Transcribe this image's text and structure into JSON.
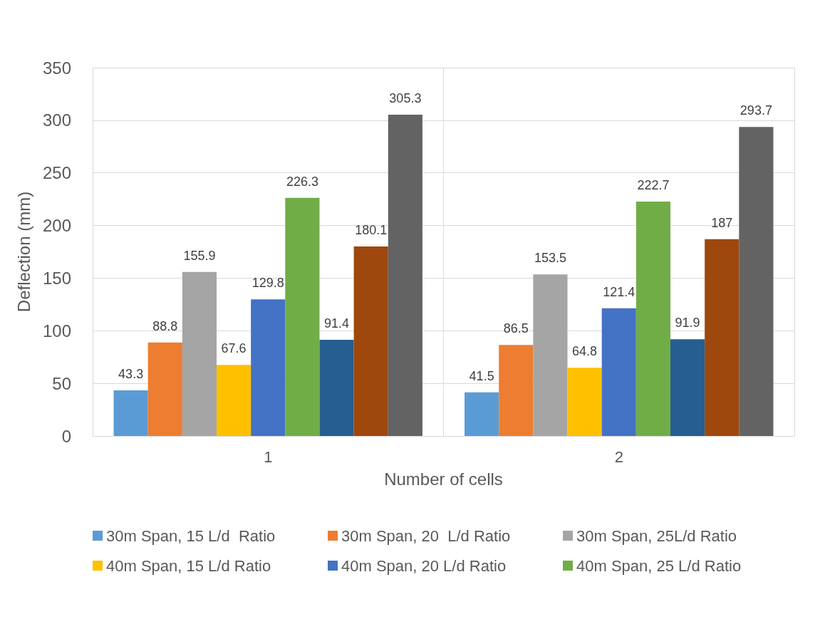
{
  "chart_data": {
    "type": "bar",
    "xlabel": "Number of cells",
    "ylabel": "Deflection (mm)",
    "categories": [
      "1",
      "2"
    ],
    "series": [
      {
        "name": "30m Span, 15 L/d  Ratio",
        "color": "#5b9bd5",
        "values": [
          43.3,
          41.5
        ]
      },
      {
        "name": "30m Span, 20  L/d Ratio",
        "color": "#ed7d31",
        "values": [
          88.8,
          86.5
        ]
      },
      {
        "name": "30m Span, 25L/d Ratio",
        "color": "#a5a5a5",
        "values": [
          155.9,
          153.5
        ]
      },
      {
        "name": "40m Span, 15 L/d Ratio",
        "color": "#ffc000",
        "values": [
          67.6,
          64.8
        ]
      },
      {
        "name": "40m Span, 20 L/d Ratio",
        "color": "#4472c4",
        "values": [
          129.8,
          121.4
        ]
      },
      {
        "name": "40m Span, 25 L/d Ratio",
        "color": "#70ad47",
        "values": [
          226.3,
          222.7
        ]
      },
      {
        "color": "#255e91",
        "values": [
          91.4,
          91.9
        ]
      },
      {
        "color": "#9e480e",
        "values": [
          180.1,
          187
        ]
      },
      {
        "color": "#636363",
        "values": [
          305.3,
          293.7
        ]
      }
    ],
    "ylim": [
      0,
      350
    ],
    "yticks": [
      0,
      50,
      100,
      150,
      200,
      250,
      300,
      350
    ],
    "grid": true,
    "data_labels": true,
    "legend": "bottom"
  }
}
